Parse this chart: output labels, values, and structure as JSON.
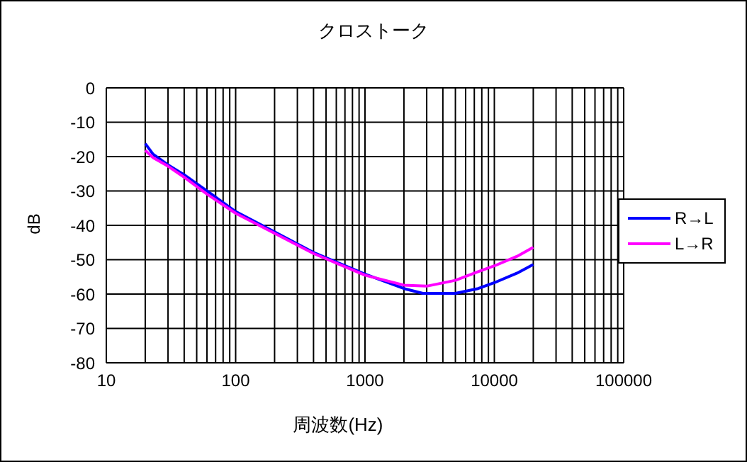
{
  "chart_data": {
    "type": "line",
    "title": "クロストーク",
    "xlabel": "周波数(Hz)",
    "ylabel": "dB",
    "log": "x",
    "grid": true,
    "legend": "right",
    "marker": "none",
    "line_style": "solid",
    "xlim": [
      10,
      100000
    ],
    "xticks": [
      10,
      100,
      1000,
      10000,
      100000
    ],
    "ylim": [
      -80,
      0
    ],
    "yticks": [
      -80,
      -70,
      -60,
      -50,
      -40,
      -30,
      -20,
      -10,
      0
    ],
    "series": [
      {
        "name": "R→L",
        "color": "#0000ff",
        "x": [
          20,
          23,
          30,
          40,
          60,
          100,
          200,
          400,
          1000,
          2000,
          2800,
          5000,
          7500,
          10000,
          15000,
          20000
        ],
        "values": [
          -16.2,
          -19.3,
          -22.4,
          -25.3,
          -30,
          -36,
          -41.9,
          -47.9,
          -54.2,
          -58.4,
          -59.8,
          -59.8,
          -58.4,
          -56.7,
          -53.9,
          -51.4
        ]
      },
      {
        "name": "L→R",
        "color": "#ff00ff",
        "x": [
          20,
          23,
          30,
          40,
          60,
          100,
          200,
          400,
          1000,
          2000,
          3000,
          5000,
          7500,
          10000,
          15000,
          20000
        ],
        "values": [
          -18.2,
          -20.3,
          -22.8,
          -26,
          -30.9,
          -36.5,
          -42.3,
          -48.2,
          -54.5,
          -57.4,
          -57.7,
          -56,
          -53.5,
          -51.8,
          -49,
          -46.4
        ]
      }
    ]
  }
}
